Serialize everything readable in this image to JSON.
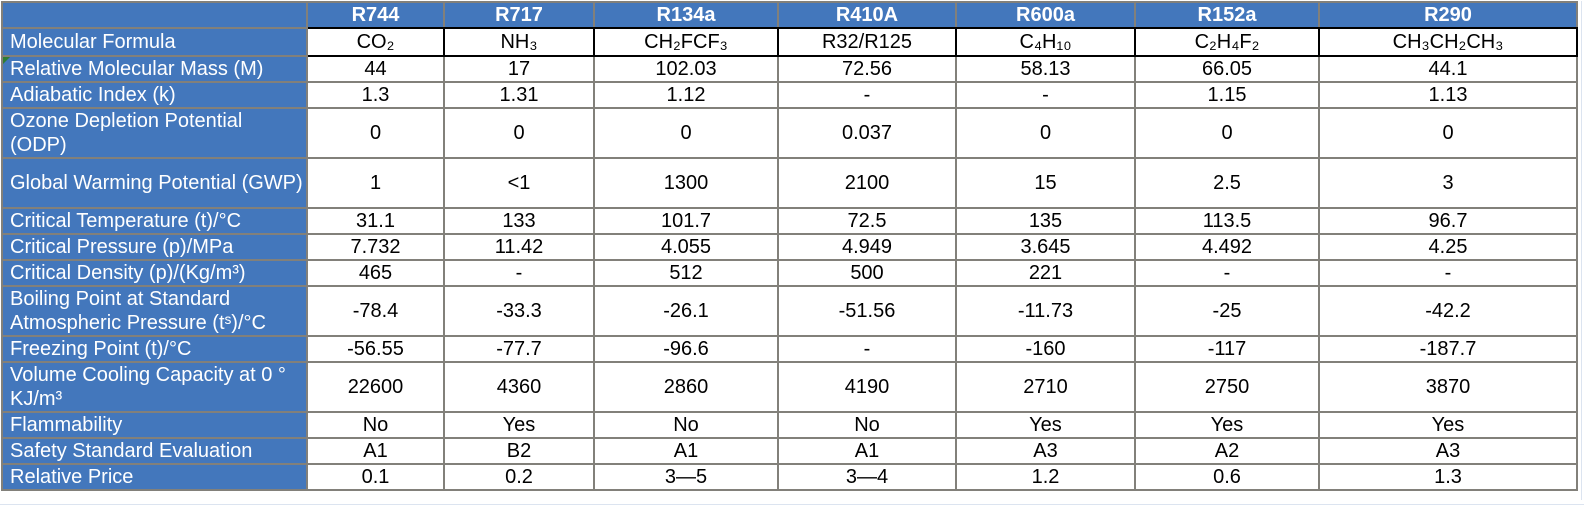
{
  "table": {
    "corner_label": "",
    "columns": [
      "R744",
      "R717",
      "R134a",
      "R410A",
      "R600a",
      "R152a",
      "R290"
    ],
    "rows": [
      {
        "label": "Molecular Formula",
        "values": [
          "CO₂",
          "NH₃",
          "CH₂FCF₃",
          "R32/R125",
          "C₄H₁₀",
          "C₂H₄F₂",
          "CH₃CH₂CH₃"
        ],
        "formula_row": true,
        "has_marker": false
      },
      {
        "label": " Relative Molecular Mass (M)",
        "values": [
          "44",
          "17",
          "102.03",
          "72.56",
          "58.13",
          "66.05",
          "44.1"
        ],
        "formula_row": false,
        "has_marker": true
      },
      {
        "label": "Adiabatic Index (k)",
        "values": [
          "1.3",
          "1.31",
          "1.12",
          "-",
          "-",
          "1.15",
          "1.13"
        ],
        "formula_row": false,
        "has_marker": false
      },
      {
        "label": "Ozone Depletion Potential (ODP)",
        "values": [
          "0",
          "0",
          "0",
          "0.037",
          "0",
          "0",
          "0"
        ],
        "formula_row": false,
        "has_marker": false
      },
      {
        "label": "Global Warming Potential (GWP)",
        "values": [
          "1",
          "<1",
          "1300",
          "2100",
          "15",
          "2.5",
          "3"
        ],
        "formula_row": false,
        "has_marker": false
      },
      {
        "label": "Critical Temperature (t)/°C",
        "values": [
          "31.1",
          "133",
          "101.7",
          "72.5",
          "135",
          "113.5",
          "96.7"
        ],
        "formula_row": false,
        "has_marker": false
      },
      {
        "label": "Critical Pressure (p)/MPa",
        "values": [
          "7.732",
          "11.42",
          "4.055",
          "4.949",
          "3.645",
          "4.492",
          "4.25"
        ],
        "formula_row": false,
        "has_marker": false
      },
      {
        "label": "Critical Density (p)/(Kg/m³)",
        "values": [
          "465",
          "-",
          "512",
          "500",
          "221",
          "-",
          "-"
        ],
        "formula_row": false,
        "has_marker": false
      },
      {
        "label": "Boiling Point at Standard Atmospheric Pressure (tˢ)/°C",
        "values": [
          "-78.4",
          "-33.3",
          "-26.1",
          "-51.56",
          "-11.73",
          "-25",
          "-42.2"
        ],
        "formula_row": false,
        "has_marker": false
      },
      {
        "label": "Freezing Point (t)/°C",
        "values": [
          "-56.55",
          "-77.7",
          "-96.6",
          "-",
          "-160",
          "-117",
          "-187.7"
        ],
        "formula_row": false,
        "has_marker": false
      },
      {
        "label": "Volume Cooling Capacity at 0 ° KJ/m³",
        "values": [
          "22600",
          "4360",
          "2860",
          "4190",
          "2710",
          "2750",
          "3870"
        ],
        "formula_row": false,
        "has_marker": false
      },
      {
        "label": "Flammability",
        "values": [
          "No",
          "Yes",
          "No",
          "No",
          "Yes",
          "Yes",
          "Yes"
        ],
        "formula_row": false,
        "has_marker": false
      },
      {
        "label": "Safety Standard Evaluation",
        "values": [
          "A1",
          "B2",
          "A1",
          "A1",
          "A3",
          "A2",
          "A3"
        ],
        "formula_row": false,
        "has_marker": false
      },
      {
        "label": "Relative Price",
        "values": [
          "0.1",
          "0.2",
          "3—5",
          "3—4",
          "1.2",
          "0.6",
          "1.3"
        ],
        "formula_row": false,
        "has_marker": false
      }
    ]
  },
  "colors": {
    "header_blue": "#4377bc",
    "grid_grey": "#82807a",
    "formula_row_border": "#000000",
    "cell_text": "#000000",
    "header_text": "#ffffff",
    "error_marker_green": "#2f7d32",
    "faint_gridline": "#dce4f0"
  }
}
